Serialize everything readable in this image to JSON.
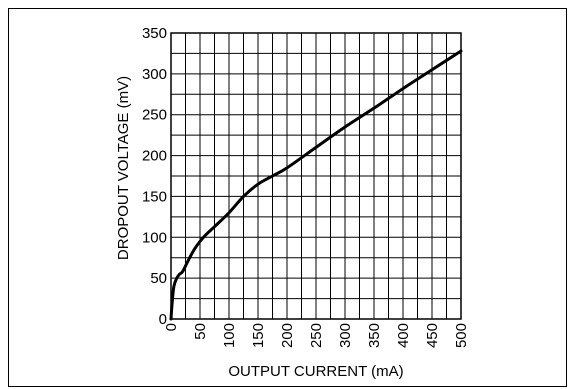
{
  "chart_data": {
    "type": "line",
    "title": "",
    "xlabel": "OUTPUT CURRENT (mA)",
    "ylabel": "DROPOUT VOLTAGE (mV)",
    "xlim": [
      0,
      500
    ],
    "ylim": [
      0,
      350
    ],
    "x_ticks": [
      "0",
      "50",
      "100",
      "150",
      "200",
      "250",
      "300",
      "350",
      "400",
      "450",
      "500"
    ],
    "y_ticks": [
      "0",
      "50",
      "100",
      "150",
      "200",
      "250",
      "300",
      "350"
    ],
    "grid": true,
    "minor_grid_step_x": 25,
    "minor_grid_step_y": 25,
    "series": [
      {
        "x": [
          0,
          2,
          5,
          10,
          15,
          20,
          30,
          40,
          50,
          60,
          75,
          100,
          125,
          150,
          175,
          200,
          250,
          300,
          350,
          400,
          450,
          500
        ],
        "y": [
          0,
          20,
          40,
          50,
          55,
          58,
          72,
          85,
          95,
          103,
          113,
          130,
          150,
          165,
          175,
          185,
          210,
          235,
          258,
          282,
          305,
          328
        ],
        "color": "#000000"
      }
    ]
  }
}
